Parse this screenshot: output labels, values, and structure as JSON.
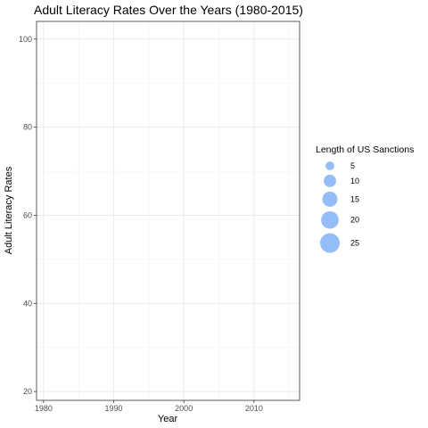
{
  "chart_data": {
    "type": "scatter",
    "title": "Adult Literacy Rates Over the Years (1980-2015)",
    "xlabel": "Year",
    "ylabel": "Adult Literacy Rates",
    "xlim": [
      1979,
      2016.5
    ],
    "ylim": [
      18,
      104
    ],
    "x_ticks": [
      1980,
      1990,
      2000,
      2010
    ],
    "x_tick_labels": [
      "1980",
      "1990",
      "2000",
      "2010"
    ],
    "y_ticks": [
      20,
      40,
      60,
      80,
      100
    ],
    "y_tick_labels": [
      "20",
      "40",
      "60",
      "80",
      "100"
    ],
    "grid": true,
    "points": [],
    "legend": {
      "title": "Length of US Sanctions",
      "position": "right",
      "sizes": [
        5,
        10,
        15,
        20,
        25
      ],
      "labels": [
        "5",
        "10",
        "15",
        "20",
        "25"
      ]
    },
    "point_color": "#8ab6f7"
  }
}
